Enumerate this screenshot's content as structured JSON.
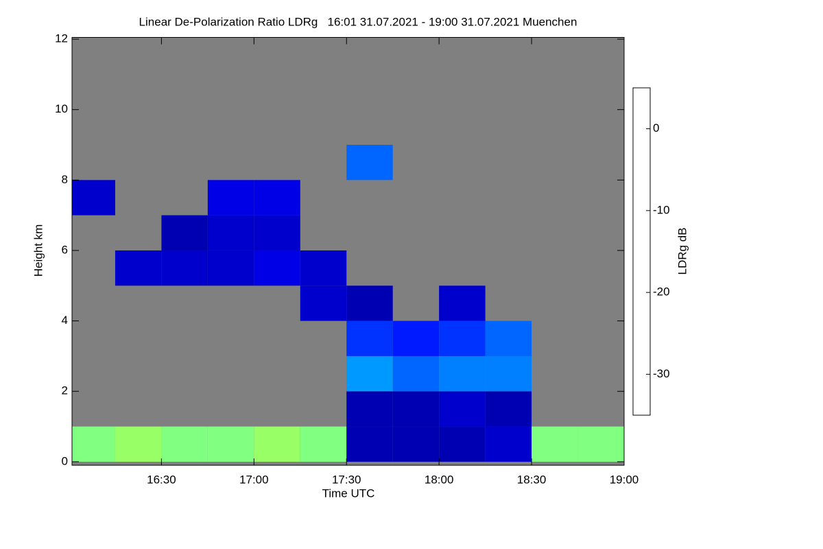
{
  "chart_data": {
    "type": "heatmap",
    "title": "Linear De-Polarization Ratio LDRg   16:01 31.07.2021 - 19:00 31.07.2021 Muenchen",
    "xlabel": "Time UTC",
    "ylabel": "Height km",
    "xlim": [
      16.0167,
      19.0
    ],
    "xticks": [
      {
        "value": 16.5,
        "label": "16:30"
      },
      {
        "value": 17.0,
        "label": "17:00"
      },
      {
        "value": 17.5,
        "label": "17:30"
      },
      {
        "value": 18.0,
        "label": "18:00"
      },
      {
        "value": 18.5,
        "label": "18:30"
      },
      {
        "value": 19.0,
        "label": "19:00"
      }
    ],
    "ylim": [
      -0.1,
      12.05
    ],
    "yticks": [
      0,
      2,
      4,
      6,
      8,
      10,
      12
    ],
    "x": [
      16.0167,
      16.25,
      16.5,
      16.75,
      17.0,
      17.25,
      17.5,
      17.75,
      18.0,
      18.25,
      18.5,
      18.75,
      19.0
    ],
    "y": [
      0,
      1,
      2,
      3,
      4,
      5,
      6,
      7,
      8,
      9,
      10,
      11,
      12
    ],
    "z": [
      [
        -15,
        -14,
        -15,
        -15,
        -14,
        -15,
        -33,
        -33,
        -33,
        -32,
        -15,
        -15
      ],
      [
        null,
        null,
        null,
        null,
        null,
        null,
        -33,
        -33,
        -32,
        -33,
        null,
        null
      ],
      [
        null,
        null,
        null,
        null,
        null,
        null,
        -24,
        -26,
        -25,
        -25,
        null,
        null
      ],
      [
        null,
        null,
        null,
        null,
        null,
        null,
        -28,
        -29,
        -28,
        -26,
        null,
        null
      ],
      [
        null,
        null,
        null,
        null,
        null,
        -32,
        -33,
        null,
        -32,
        null,
        null,
        null
      ],
      [
        null,
        -32,
        -32,
        -32,
        -31,
        -32,
        null,
        null,
        null,
        null,
        null,
        null
      ],
      [
        null,
        null,
        -33,
        -32,
        -32,
        null,
        null,
        null,
        null,
        null,
        null,
        null
      ],
      [
        -32,
        null,
        null,
        -31,
        -31,
        null,
        null,
        null,
        null,
        null,
        null,
        null
      ],
      [
        null,
        null,
        null,
        null,
        null,
        null,
        -26,
        null,
        null,
        null,
        null,
        null
      ],
      [
        null,
        null,
        null,
        null,
        null,
        null,
        null,
        null,
        null,
        null,
        null,
        null
      ],
      [
        null,
        null,
        null,
        null,
        null,
        null,
        null,
        null,
        null,
        null,
        null,
        null
      ],
      [
        null,
        null,
        null,
        null,
        null,
        null,
        null,
        null,
        null,
        null,
        null,
        null
      ]
    ],
    "colorbar_label": "LDRg dB",
    "clim": [
      -35,
      5
    ],
    "cticks": [
      0,
      -10,
      -20,
      -30
    ],
    "colormap": "jet",
    "background": "#808080"
  }
}
